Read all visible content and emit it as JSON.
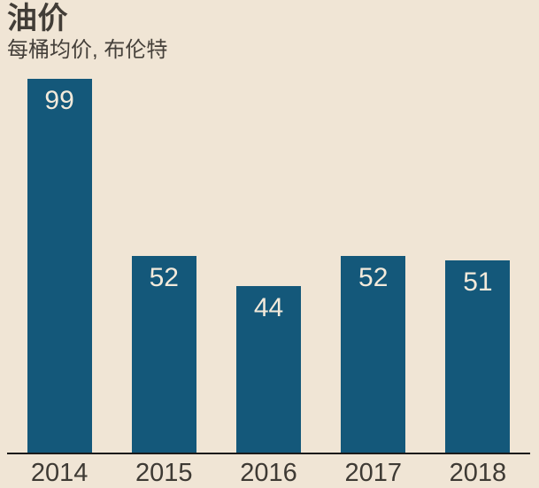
{
  "header": {
    "title": "油价",
    "subtitle": "每桶均价, 布伦特"
  },
  "chart_data": {
    "type": "bar",
    "title": "油价",
    "subtitle": "每桶均价, 布伦特",
    "categories": [
      "2014",
      "2015",
      "2016",
      "2017",
      "2018"
    ],
    "values": [
      99,
      52,
      44,
      52,
      51
    ],
    "xlabel": "",
    "ylabel": "",
    "ylim": [
      0,
      99
    ],
    "grid": false,
    "legend_position": "none",
    "value_labels_inside_bars": true
  },
  "colors": {
    "background": "#F0E5D5",
    "bar": "#14587A",
    "bar_value_label": "#F3EADB",
    "axis_line": "#1A1A1A",
    "text": "#423D37"
  }
}
